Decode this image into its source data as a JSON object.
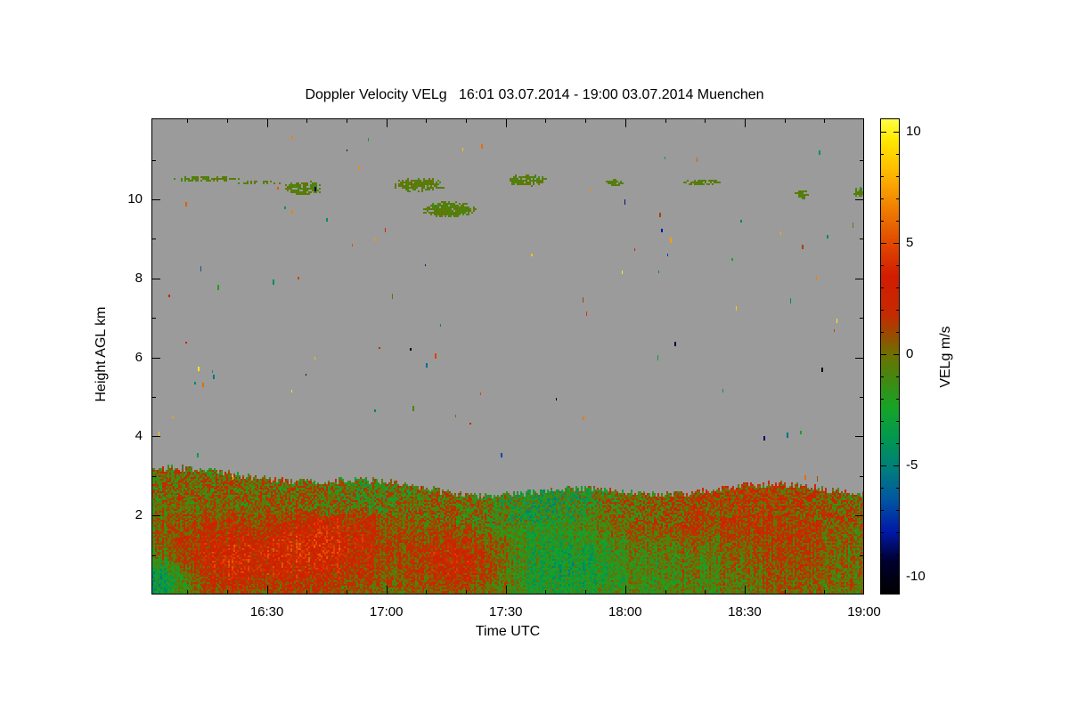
{
  "figure": {
    "background": "#ffffff"
  },
  "chart_data": {
    "type": "heatmap",
    "title": "Doppler Velocity VELg   16:01 03.07.2014 - 19:00 03.07.2014 Muenchen",
    "quantity": "Doppler Velocity VELg",
    "period_start": "16:01 03.07.2014",
    "period_end": "19:00 03.07.2014",
    "station": "Muenchen",
    "xlabel": "Time UTC",
    "ylabel": "Height AGL km",
    "no_data_color": "#9b9b9b",
    "x_axis": {
      "start_minutes": 0,
      "end_minutes": 179,
      "ticks": [
        {
          "label": "16:30",
          "t": 29
        },
        {
          "label": "17:00",
          "t": 59
        },
        {
          "label": "17:30",
          "t": 89
        },
        {
          "label": "18:00",
          "t": 119
        },
        {
          "label": "18:30",
          "t": 149
        },
        {
          "label": "19:00",
          "t": 179
        }
      ],
      "minor_step_minutes": 10
    },
    "y_axis": {
      "min_km": 0,
      "max_km": 12.05,
      "ticks": [
        {
          "label": "2",
          "h": 2
        },
        {
          "label": "4",
          "h": 4
        },
        {
          "label": "6",
          "h": 6
        },
        {
          "label": "8",
          "h": 8
        },
        {
          "label": "10",
          "h": 10
        }
      ],
      "minor_step_km": 1
    },
    "colorbar": {
      "label": "VELg m/s",
      "min": -10.8,
      "max": 10.6,
      "ticks": [
        {
          "label": "10",
          "v": 10
        },
        {
          "label": "5",
          "v": 5
        },
        {
          "label": "0",
          "v": 0
        },
        {
          "label": "-5",
          "v": -5
        },
        {
          "label": "-10",
          "v": -10
        }
      ],
      "minor_step": 1,
      "stops": [
        [
          -10.8,
          "#000000"
        ],
        [
          -9.3,
          "#000030"
        ],
        [
          -8.0,
          "#0018a8"
        ],
        [
          -6.5,
          "#0058a0"
        ],
        [
          -5.2,
          "#007d7d"
        ],
        [
          -3.8,
          "#009850"
        ],
        [
          -2.4,
          "#16a426"
        ],
        [
          -1.2,
          "#3f8a12"
        ],
        [
          0.0,
          "#6e7000"
        ],
        [
          0.9,
          "#9a4a00"
        ],
        [
          1.8,
          "#c62a00"
        ],
        [
          3.5,
          "#d21c00"
        ],
        [
          5.0,
          "#e14800"
        ],
        [
          6.6,
          "#f08000"
        ],
        [
          8.2,
          "#ffb900"
        ],
        [
          9.6,
          "#ffe600"
        ],
        [
          10.6,
          "#ffff46"
        ]
      ]
    },
    "layers": {
      "boundary_layer": {
        "description": "aerosol boundary layer with mixed updrafts (red) and downdrafts (green) below ~2.9 km",
        "top_km_base": 2.85,
        "top_km_trend": -0.45,
        "top_ragged_km": 0.18,
        "mix_band_depth_km": 0.8,
        "mix_band_base_ms": 0.2,
        "mix_band_noise_ms": 3.0,
        "mix_band_patches": [
          {
            "t": 99,
            "amp": -2.6,
            "st": 10
          },
          {
            "t": 54,
            "amp": -1.0,
            "st": 7
          },
          {
            "t": 150,
            "amp": 1.3,
            "st": 15
          }
        ],
        "core_base_ms": -0.9,
        "core_noise_ms": 2.0,
        "core_patches": [
          {
            "t": 20.5,
            "h": 0.9,
            "amp": 4.2,
            "st": 14,
            "sh": 0.8
          },
          {
            "t": 46.5,
            "h": 1.3,
            "amp": 3.6,
            "st": 10,
            "sh": 0.9
          },
          {
            "t": 78.0,
            "h": 0.8,
            "amp": 3.8,
            "st": 10,
            "sh": 0.7
          },
          {
            "t": 132.0,
            "h": 2.0,
            "amp": 2.6,
            "st": 20,
            "sh": 0.5
          },
          {
            "t": 161.0,
            "h": 1.1,
            "amp": 2.0,
            "st": 12,
            "sh": 0.9
          },
          {
            "t": 100.0,
            "h": 0.8,
            "amp": -2.2,
            "st": 12,
            "sh": 1.0
          },
          {
            "t": 2.0,
            "h": 0.3,
            "amp": -4.0,
            "st": 6,
            "sh": 0.5
          }
        ]
      },
      "cloud_velocity_range_ms": [
        -1.3,
        0.1
      ],
      "cloud_blobs": [
        {
          "t": 13.5,
          "h": 10.55,
          "dur": 15.0,
          "thick": 0.12,
          "density": 0.75
        },
        {
          "t": 26.0,
          "h": 10.45,
          "dur": 12.0,
          "thick": 0.1,
          "density": 0.45
        },
        {
          "t": 38.0,
          "h": 10.3,
          "dur": 9.0,
          "thick": 0.35,
          "density": 0.85
        },
        {
          "t": 67.0,
          "h": 10.4,
          "dur": 12.0,
          "thick": 0.32,
          "density": 0.9
        },
        {
          "t": 75.0,
          "h": 9.75,
          "dur": 13.0,
          "thick": 0.38,
          "density": 0.9
        },
        {
          "t": 94.0,
          "h": 10.5,
          "dur": 9.0,
          "thick": 0.28,
          "density": 0.85
        },
        {
          "t": 116.0,
          "h": 10.45,
          "dur": 5.0,
          "thick": 0.16,
          "density": 0.8
        },
        {
          "t": 138.0,
          "h": 10.45,
          "dur": 9.0,
          "thick": 0.12,
          "density": 0.8
        },
        {
          "t": 163.0,
          "h": 10.15,
          "dur": 3.0,
          "thick": 0.22,
          "density": 0.85
        },
        {
          "t": 177.5,
          "h": 10.2,
          "dur": 2.5,
          "thick": 0.25,
          "density": 0.8
        }
      ],
      "speckles": {
        "count": 85,
        "height_range_km": [
          3.0,
          11.7
        ],
        "velocity_range_ms": [
          -10.5,
          10.5
        ]
      }
    }
  }
}
